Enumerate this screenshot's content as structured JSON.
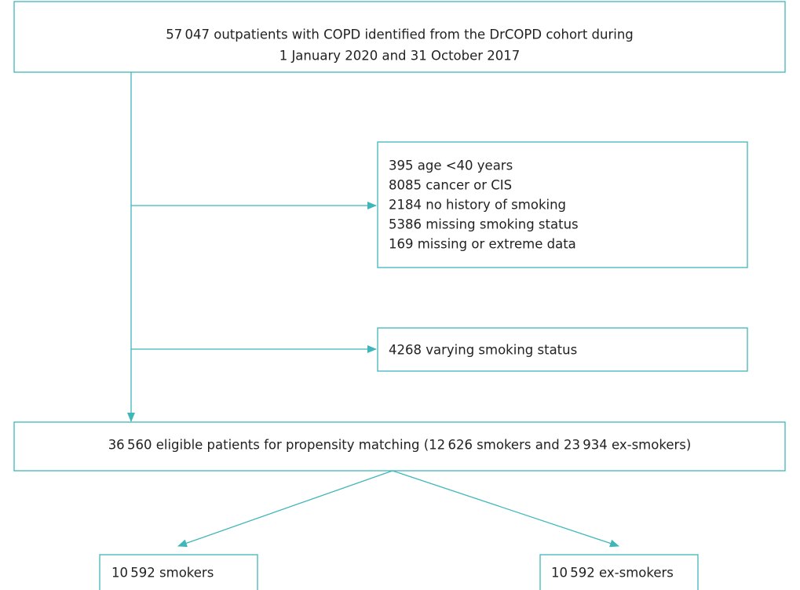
{
  "nodes": [
    {
      "lines": [
        "57 047 outpatients with COPD identified from the DrCOPD cohort during",
        "1 January 2020 and 31 October 2017"
      ]
    },
    {
      "lines": [
        "395 age <40 years",
        "8085 cancer or CIS",
        "2184 no history of smoking",
        "5386 missing smoking status",
        "169 missing or extreme data"
      ]
    },
    {
      "lines": [
        "4268 varying smoking status"
      ]
    },
    {
      "lines": [
        "36 560  eligible patients for propensity matching (12 626 smokers and 23 934 ex-smokers)"
      ]
    },
    {
      "lines": [
        "10 592 smokers"
      ]
    },
    {
      "lines": [
        "10 592 ex-smokers"
      ]
    }
  ]
}
